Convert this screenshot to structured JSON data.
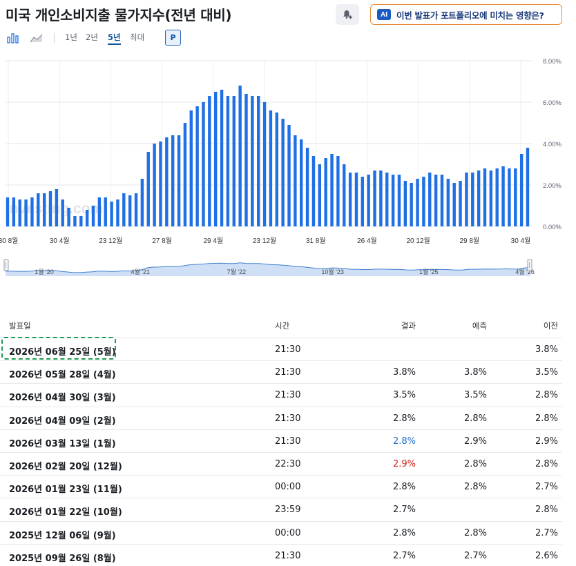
{
  "header": {
    "title": "미국 개인소비지출 물가지수(전년 대비)",
    "ai_badge": "AI",
    "ai_button": "이번 발표가 포트폴리오에 미치는 영향은?"
  },
  "toolbar": {
    "ranges": [
      "1년",
      "2년",
      "5년",
      "최대"
    ],
    "active_range": "5년",
    "p_label": "P"
  },
  "colors": {
    "bar": "#1f6fe5",
    "accent_link": "#1256a0",
    "positive": "#1a6ec9",
    "negative": "#d0221b",
    "highlight": "#1b9b52"
  },
  "chart_data": {
    "type": "bar",
    "y_ticks": [
      "8.00%",
      "6.00%",
      "4.00%",
      "2.00%",
      "0.00%"
    ],
    "ylim": [
      0,
      8
    ],
    "x_labels": [
      "30 8월",
      "30 4월",
      "23 12월",
      "27 8월",
      "29 4월",
      "23 12월",
      "31 8월",
      "26 4월",
      "20 12월",
      "29 8월",
      "30 4월"
    ],
    "values": [
      1.4,
      1.4,
      1.3,
      1.3,
      1.4,
      1.6,
      1.6,
      1.7,
      1.8,
      1.3,
      0.9,
      0.5,
      0.5,
      0.8,
      1.0,
      1.4,
      1.4,
      1.2,
      1.3,
      1.6,
      1.5,
      1.6,
      2.3,
      3.6,
      4.0,
      4.1,
      4.3,
      4.4,
      4.4,
      5.0,
      5.6,
      5.8,
      6.0,
      6.3,
      6.5,
      6.6,
      6.3,
      6.3,
      6.8,
      6.4,
      6.3,
      6.3,
      6.0,
      5.6,
      5.5,
      5.2,
      4.9,
      4.4,
      4.2,
      3.8,
      3.4,
      3.0,
      3.3,
      3.5,
      3.4,
      3.0,
      2.6,
      2.6,
      2.4,
      2.5,
      2.7,
      2.7,
      2.6,
      2.5,
      2.5,
      2.2,
      2.1,
      2.3,
      2.4,
      2.6,
      2.5,
      2.5,
      2.3,
      2.1,
      2.2,
      2.6,
      2.6,
      2.7,
      2.8,
      2.7,
      2.8,
      2.9,
      2.8,
      2.8,
      3.5,
      3.8
    ],
    "navigator_labels": [
      "1월 '20",
      "4월 '21",
      "7월 '22",
      "10월 '23",
      "1월 '25",
      "4월 '26"
    ],
    "watermark": "Investing.com"
  },
  "table": {
    "headers": {
      "date": "발표일",
      "time": "시간",
      "actual": "결과",
      "forecast": "예측",
      "previous": "이전"
    },
    "rows": [
      {
        "date": "2026년 06월 25일 (5월)",
        "time": "21:30",
        "actual": "",
        "forecast": "",
        "previous": "3.8%",
        "actual_state": ""
      },
      {
        "date": "2026년 05월 28일 (4월)",
        "time": "21:30",
        "actual": "3.8%",
        "forecast": "3.8%",
        "previous": "3.5%",
        "actual_state": ""
      },
      {
        "date": "2026년 04월 30일 (3월)",
        "time": "21:30",
        "actual": "3.5%",
        "forecast": "3.5%",
        "previous": "2.8%",
        "actual_state": ""
      },
      {
        "date": "2026년 04월 09일 (2월)",
        "time": "21:30",
        "actual": "2.8%",
        "forecast": "2.8%",
        "previous": "2.8%",
        "actual_state": ""
      },
      {
        "date": "2026년 03월 13일 (1월)",
        "time": "21:30",
        "actual": "2.8%",
        "forecast": "2.9%",
        "previous": "2.9%",
        "actual_state": "pos"
      },
      {
        "date": "2026년 02월 20일 (12월)",
        "time": "22:30",
        "actual": "2.9%",
        "forecast": "2.8%",
        "previous": "2.8%",
        "actual_state": "neg"
      },
      {
        "date": "2026년 01월 23일 (11월)",
        "time": "00:00",
        "actual": "2.8%",
        "forecast": "2.8%",
        "previous": "2.7%",
        "actual_state": ""
      },
      {
        "date": "2026년 01월 22일 (10월)",
        "time": "23:59",
        "actual": "2.7%",
        "forecast": "",
        "previous": "2.8%",
        "actual_state": ""
      },
      {
        "date": "2025년 12월 06일 (9월)",
        "time": "00:00",
        "actual": "2.8%",
        "forecast": "2.8%",
        "previous": "2.7%",
        "actual_state": ""
      },
      {
        "date": "2025년 09월 26일 (8월)",
        "time": "21:30",
        "actual": "2.7%",
        "forecast": "2.7%",
        "previous": "2.6%",
        "actual_state": ""
      }
    ]
  }
}
